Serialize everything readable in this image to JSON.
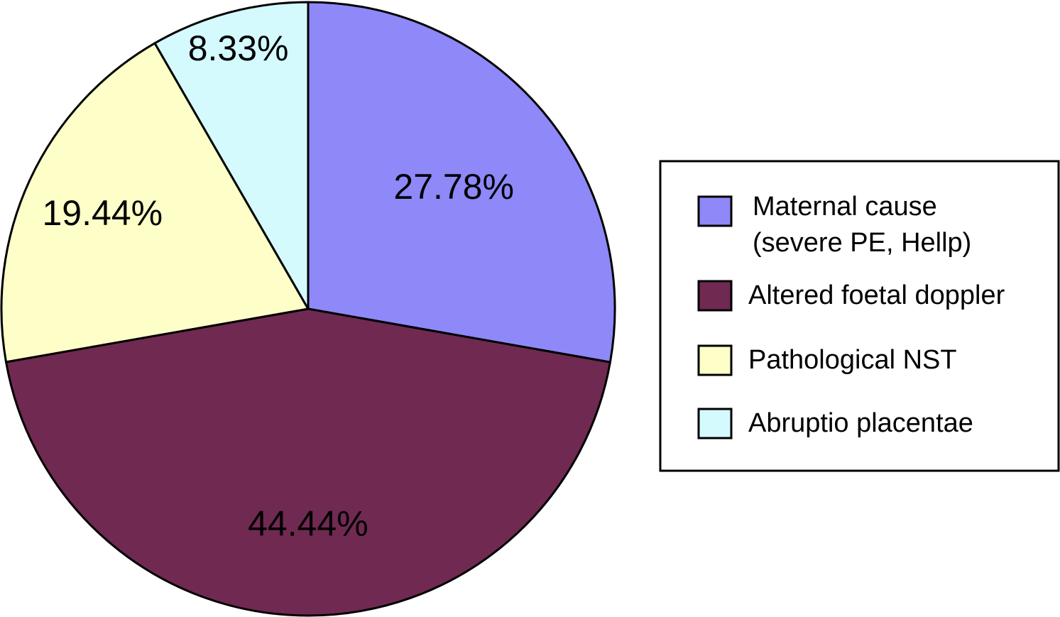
{
  "chart_data": {
    "type": "pie",
    "slices": [
      {
        "label": "Maternal cause (severe PE, Hellp)",
        "label_lines": [
          "Maternal cause",
          "(severe PE, Hellp)"
        ],
        "value": 27.78,
        "display": "27.78%",
        "color": "#8e88f8"
      },
      {
        "label": "Altered foetal doppler",
        "label_lines": [
          "Altered foetal doppler"
        ],
        "value": 44.44,
        "display": "44.44%",
        "color": "#702951"
      },
      {
        "label": "Pathological NST",
        "label_lines": [
          "Pathological NST"
        ],
        "value": 19.44,
        "display": "19.44%",
        "color": "#fefec8"
      },
      {
        "label": "Abruptio placentae",
        "label_lines": [
          "Abruptio placentae"
        ],
        "value": 8.33,
        "display": "8.33%",
        "color": "#d4fafd"
      }
    ],
    "start_angle": "12 o'clock",
    "direction": "clockwise",
    "legend_position": "right"
  }
}
